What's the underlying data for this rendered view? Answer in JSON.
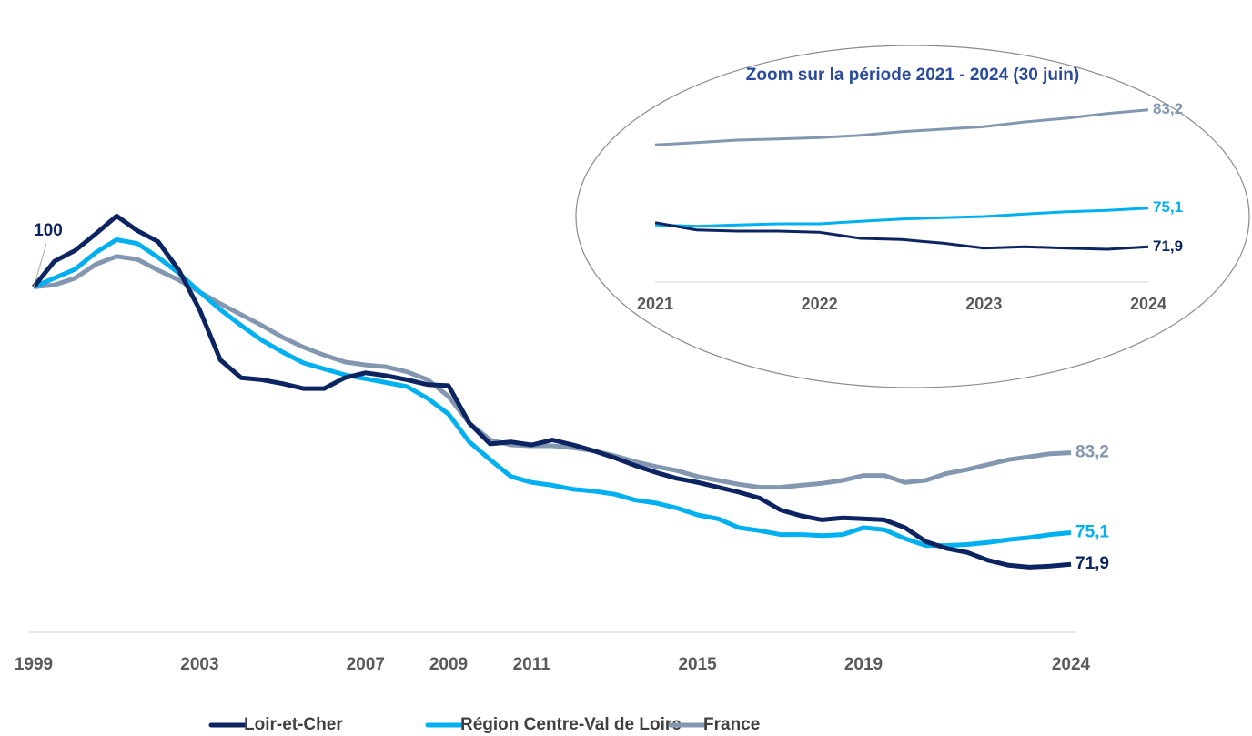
{
  "chart_data": [
    {
      "type": "line",
      "x": [
        1999,
        1999.5,
        2000,
        2000.5,
        2001,
        2001.5,
        2002,
        2002.5,
        2003,
        2003.5,
        2004,
        2004.5,
        2005,
        2005.5,
        2006,
        2006.5,
        2007,
        2007.5,
        2008,
        2008.5,
        2009,
        2009.5,
        2010,
        2010.5,
        2011,
        2011.5,
        2012,
        2012.5,
        2013,
        2013.5,
        2014,
        2014.5,
        2015,
        2015.5,
        2016,
        2016.5,
        2017,
        2017.5,
        2018,
        2018.5,
        2019,
        2019.5,
        2020,
        2020.5,
        2021,
        2021.5,
        2022,
        2022.5,
        2023,
        2023.5,
        2024
      ],
      "xlim": [
        1999,
        2024
      ],
      "xticks": [
        1999,
        2003,
        2007,
        2009,
        2011,
        2015,
        2019,
        2024
      ],
      "ylim": [
        65,
        110
      ],
      "legend": "bottom",
      "series": [
        {
          "name": "Loir-et-Cher",
          "color": "#0c2461",
          "values": [
            100,
            102.6,
            103.7,
            105.4,
            107.2,
            105.7,
            104.6,
            101.7,
            97.7,
            92.6,
            90.8,
            90.6,
            90.2,
            89.7,
            89.7,
            90.8,
            91.3,
            91.0,
            90.6,
            90.1,
            90.0,
            86.2,
            84.1,
            84.3,
            84.0,
            84.5,
            84.0,
            83.4,
            82.7,
            81.9,
            81.2,
            80.6,
            80.2,
            79.7,
            79.2,
            78.6,
            77.4,
            76.8,
            76.4,
            76.6,
            76.5,
            76.4,
            75.6,
            74.2,
            73.5,
            73.1,
            72.3,
            71.8,
            71.6,
            71.7,
            71.9
          ],
          "value_labels": {
            "50": "71,9"
          }
        },
        {
          "name": "Région Centre-Val de Loire",
          "color": "#00b0f0",
          "values": [
            100,
            100.9,
            101.8,
            103.5,
            104.8,
            104.4,
            103.0,
            101.4,
            99.5,
            97.7,
            96.1,
            94.6,
            93.4,
            92.3,
            91.7,
            91.1,
            90.7,
            90.3,
            89.9,
            88.7,
            87.1,
            84.3,
            82.5,
            80.8,
            80.2,
            79.9,
            79.5,
            79.3,
            79.0,
            78.4,
            78.1,
            77.6,
            76.9,
            76.5,
            75.6,
            75.3,
            74.9,
            74.9,
            74.8,
            74.9,
            75.6,
            75.4,
            74.5,
            73.8,
            73.8,
            73.9,
            74.1,
            74.4,
            74.6,
            74.9,
            75.1
          ],
          "value_labels": {
            "50": "75,1"
          }
        },
        {
          "name": "France",
          "color": "#8497b0",
          "values": [
            100,
            100.2,
            100.9,
            102.3,
            103.1,
            102.8,
            101.7,
            100.7,
            99.5,
            98.3,
            97.2,
            96.1,
            94.9,
            93.9,
            93.1,
            92.4,
            92.1,
            91.9,
            91.4,
            90.6,
            88.9,
            86.2,
            84.5,
            84.0,
            83.9,
            83.9,
            83.7,
            83.4,
            82.9,
            82.3,
            81.8,
            81.4,
            80.8,
            80.4,
            80.0,
            79.7,
            79.7,
            79.9,
            80.1,
            80.4,
            80.9,
            80.9,
            80.2,
            80.4,
            81.1,
            81.5,
            82.0,
            82.5,
            82.8,
            83.1,
            83.2
          ],
          "value_labels": {
            "50": "83,2"
          }
        }
      ]
    },
    {
      "type": "line",
      "title": "Zoom sur la période 2021 - 2024 (30 juin)",
      "x": [
        2021,
        2021.25,
        2021.5,
        2021.75,
        2022,
        2022.25,
        2022.5,
        2022.75,
        2023,
        2023.25,
        2023.5,
        2023.75,
        2024
      ],
      "xlim": [
        2021,
        2024
      ],
      "xticks": [
        2021,
        2022,
        2023,
        2024
      ],
      "ylim": [
        69,
        84
      ],
      "series": [
        {
          "color": "#0c2461",
          "values": [
            73.9,
            73.3,
            73.2,
            73.2,
            73.1,
            72.6,
            72.5,
            72.2,
            71.8,
            71.9,
            71.8,
            71.7,
            71.9
          ],
          "value_labels": {
            "12": "71,9"
          }
        },
        {
          "color": "#00b0f0",
          "values": [
            73.7,
            73.6,
            73.7,
            73.8,
            73.8,
            74.0,
            74.2,
            74.3,
            74.4,
            74.6,
            74.8,
            74.9,
            75.1
          ],
          "value_labels": {
            "12": "75,1"
          }
        },
        {
          "color": "#8497b0",
          "values": [
            80.3,
            80.5,
            80.7,
            80.8,
            80.9,
            81.1,
            81.4,
            81.6,
            81.8,
            82.2,
            82.5,
            82.9,
            83.2
          ],
          "value_labels": {
            "12": "83,2"
          }
        }
      ]
    }
  ]
}
